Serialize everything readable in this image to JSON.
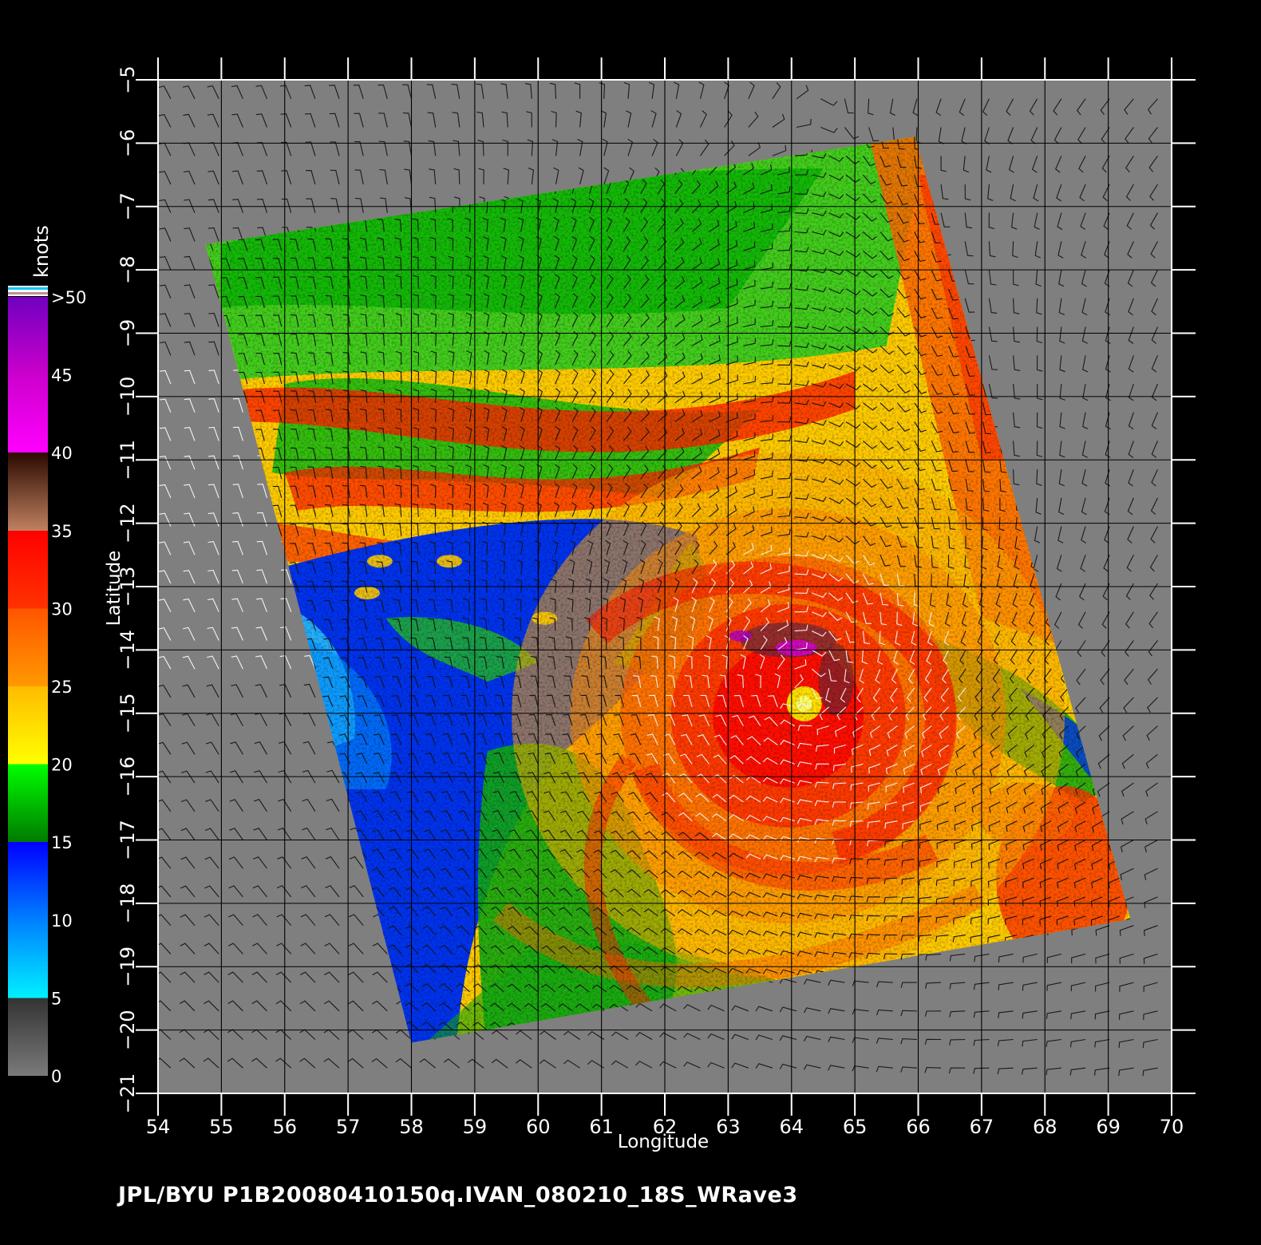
{
  "figure": {
    "units_label": "knots",
    "x_axis_label": "Longitude",
    "y_axis_label": "Latitude",
    "credit_line": "JPL/BYU  P1B20080410150q.IVAN_080210_18S_WRave3"
  },
  "colorbar": {
    "tick_labels": [
      ">50",
      "45",
      "40",
      "35",
      "30",
      "25",
      "20",
      "15",
      "10",
      "5",
      "0"
    ],
    "stops": [
      {
        "value": 0,
        "color": "#7a7a7a"
      },
      {
        "value": 5,
        "color": "#333333"
      },
      {
        "value": 5,
        "color": "#00f0ff"
      },
      {
        "value": 10,
        "color": "#0080ff"
      },
      {
        "value": 15,
        "color": "#0000ff"
      },
      {
        "value": 15,
        "color": "#007a00"
      },
      {
        "value": 20,
        "color": "#00ff00"
      },
      {
        "value": 20,
        "color": "#ffff00"
      },
      {
        "value": 25,
        "color": "#ffbb00"
      },
      {
        "value": 25,
        "color": "#ff9900"
      },
      {
        "value": 30,
        "color": "#ff5500"
      },
      {
        "value": 30,
        "color": "#ff3300"
      },
      {
        "value": 35,
        "color": "#ff0000"
      },
      {
        "value": 35,
        "color": "#c08060"
      },
      {
        "value": 40,
        "color": "#2a0a00"
      },
      {
        "value": 40,
        "color": "#ff00ff"
      },
      {
        "value": 45,
        "color": "#cc00cc"
      },
      {
        "value": 50,
        "color": "#7000c0"
      }
    ]
  },
  "chart_data": {
    "type": "heatmap",
    "variable": "ocean surface wind speed",
    "units": "knots",
    "color_range": [
      0,
      50
    ],
    "x_axis": {
      "label": "Longitude",
      "range": [
        54,
        70
      ],
      "ticks": [
        54,
        55,
        56,
        57,
        58,
        59,
        60,
        61,
        62,
        63,
        64,
        65,
        66,
        67,
        68,
        69,
        70
      ]
    },
    "y_axis": {
      "label": "Latitude",
      "range": [
        -21,
        -5
      ],
      "ticks": [
        -5,
        -6,
        -7,
        -8,
        -9,
        -10,
        -11,
        -12,
        -13,
        -14,
        -15,
        -16,
        -17,
        -18,
        -19,
        -20,
        -21
      ],
      "tick_labels": [
        "−5",
        "−6",
        "−7",
        "−8",
        "−9",
        "−10",
        "−11",
        "−12",
        "−13",
        "−14",
        "−15",
        "−16",
        "−17",
        "−18",
        "−19",
        "−20",
        "−21"
      ]
    },
    "grid": true,
    "swath_corners": [
      {
        "lon": 54.75,
        "lat": -7.6
      },
      {
        "lon": 65.95,
        "lat": -5.9
      },
      {
        "lon": 69.35,
        "lat": -18.25
      },
      {
        "lon": 58.0,
        "lat": -20.2
      }
    ],
    "storm_center": {
      "lon": 64.2,
      "lat": -14.85
    },
    "wind_regions": [
      {
        "name": "storm core",
        "lon": 64.2,
        "lat": -14.85,
        "speed_knots": 35
      },
      {
        "name": "northeast swath",
        "lon": 66.8,
        "lat": -8.5,
        "speed_knots": 28
      },
      {
        "name": "southeast swath",
        "lon": 68.2,
        "lat": -17.6,
        "speed_knots": 30
      },
      {
        "name": "western low-wind area",
        "lon": 59.5,
        "lat": -14.5,
        "speed_knots": 11
      },
      {
        "name": "north band",
        "lon": 60.0,
        "lat": -10.9,
        "speed_knots": 27
      }
    ],
    "colorbar_ticks": [
      0,
      5,
      10,
      15,
      20,
      25,
      30,
      35,
      40,
      45,
      50
    ]
  }
}
